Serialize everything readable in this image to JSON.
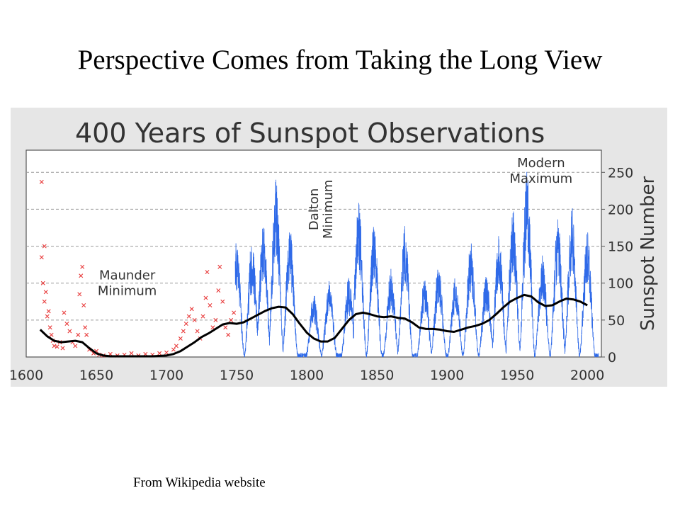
{
  "slide": {
    "title": "Perspective Comes from Taking the Long View",
    "source_note": "From Wikipedia website"
  },
  "chart_data": {
    "type": "line",
    "title": "400 Years of Sunspot Observations",
    "xlabel": "",
    "ylabel": "Sunspot Number",
    "xlim": [
      1600,
      2010
    ],
    "ylim": [
      0,
      280
    ],
    "x_ticks": [
      1600,
      1650,
      1700,
      1750,
      1800,
      1850,
      1900,
      1950,
      2000
    ],
    "y_ticks": [
      0,
      50,
      100,
      150,
      200,
      250
    ],
    "grid": "horizontal dashed",
    "colors": {
      "background": "#e6e6e6",
      "plot_background": "#ffffff",
      "telescope_observations": "#e83a3a",
      "monthly_series": "#2f6ae8",
      "smoothed_series": "#000000",
      "grid": "#9a9a9a",
      "text": "#333333"
    },
    "annotations": [
      {
        "text": [
          "Maunder",
          "Minimum"
        ],
        "x": 1672,
        "y": 105,
        "orientation": "horizontal"
      },
      {
        "text": [
          "Dalton",
          "Minimum"
        ],
        "x": 1808,
        "y": 200,
        "orientation": "vertical"
      },
      {
        "text": [
          "Modern",
          "Maximum"
        ],
        "x": 1967,
        "y": 257,
        "orientation": "horizontal"
      }
    ],
    "series": [
      {
        "kind": "scatter-x",
        "x_range": [
          1610,
          1750
        ],
        "points": [
          [
            1611,
            237
          ],
          [
            1611,
            135
          ],
          [
            1612,
            100
          ],
          [
            1613,
            150
          ],
          [
            1613,
            75
          ],
          [
            1614,
            88
          ],
          [
            1615,
            55
          ],
          [
            1616,
            62
          ],
          [
            1617,
            40
          ],
          [
            1618,
            30
          ],
          [
            1619,
            22
          ],
          [
            1620,
            15
          ],
          [
            1622,
            14
          ],
          [
            1624,
            20
          ],
          [
            1626,
            12
          ],
          [
            1627,
            60
          ],
          [
            1629,
            45
          ],
          [
            1631,
            35
          ],
          [
            1633,
            20
          ],
          [
            1635,
            15
          ],
          [
            1637,
            30
          ],
          [
            1638,
            85
          ],
          [
            1639,
            110
          ],
          [
            1640,
            122
          ],
          [
            1641,
            70
          ],
          [
            1642,
            40
          ],
          [
            1643,
            30
          ],
          [
            1645,
            10
          ],
          [
            1648,
            5
          ],
          [
            1650,
            8
          ],
          [
            1652,
            3
          ],
          [
            1655,
            2
          ],
          [
            1660,
            4
          ],
          [
            1665,
            2
          ],
          [
            1670,
            3
          ],
          [
            1675,
            5
          ],
          [
            1680,
            2
          ],
          [
            1685,
            4
          ],
          [
            1690,
            3
          ],
          [
            1695,
            5
          ],
          [
            1700,
            6
          ],
          [
            1705,
            10
          ],
          [
            1707,
            15
          ],
          [
            1710,
            25
          ],
          [
            1712,
            35
          ],
          [
            1714,
            45
          ],
          [
            1716,
            55
          ],
          [
            1718,
            65
          ],
          [
            1720,
            50
          ],
          [
            1722,
            35
          ],
          [
            1724,
            25
          ],
          [
            1726,
            55
          ],
          [
            1728,
            80
          ],
          [
            1729,
            115
          ],
          [
            1731,
            70
          ],
          [
            1733,
            40
          ],
          [
            1735,
            50
          ],
          [
            1737,
            90
          ],
          [
            1738,
            122
          ],
          [
            1740,
            75
          ],
          [
            1742,
            40
          ],
          [
            1744,
            30
          ],
          [
            1746,
            50
          ],
          [
            1748,
            60
          ]
        ]
      },
      {
        "kind": "monthly",
        "name": "",
        "x_range": [
          1749,
          2008
        ],
        "cycles": [
          {
            "peak_year": 1750,
            "max": 158
          },
          {
            "peak_year": 1761,
            "max": 155
          },
          {
            "peak_year": 1769,
            "max": 180
          },
          {
            "peak_year": 1778,
            "max": 238
          },
          {
            "peak_year": 1788,
            "max": 175
          },
          {
            "peak_year": 1805,
            "max": 82
          },
          {
            "peak_year": 1816,
            "max": 100
          },
          {
            "peak_year": 1830,
            "max": 105
          },
          {
            "peak_year": 1837,
            "max": 206
          },
          {
            "peak_year": 1848,
            "max": 180
          },
          {
            "peak_year": 1860,
            "max": 116
          },
          {
            "peak_year": 1870,
            "max": 176
          },
          {
            "peak_year": 1884,
            "max": 106
          },
          {
            "peak_year": 1894,
            "max": 122
          },
          {
            "peak_year": 1906,
            "max": 107
          },
          {
            "peak_year": 1917,
            "max": 154
          },
          {
            "peak_year": 1928,
            "max": 108
          },
          {
            "peak_year": 1937,
            "max": 165
          },
          {
            "peak_year": 1947,
            "max": 201
          },
          {
            "peak_year": 1957,
            "max": 253
          },
          {
            "peak_year": 1968,
            "max": 135
          },
          {
            "peak_year": 1979,
            "max": 188
          },
          {
            "peak_year": 1989,
            "max": 200
          },
          {
            "peak_year": 2000,
            "max": 170
          }
        ]
      },
      {
        "kind": "smoothed",
        "name": "",
        "points": [
          [
            1610,
            37
          ],
          [
            1615,
            28
          ],
          [
            1620,
            22
          ],
          [
            1625,
            20
          ],
          [
            1630,
            21
          ],
          [
            1635,
            22
          ],
          [
            1640,
            20
          ],
          [
            1645,
            12
          ],
          [
            1650,
            5
          ],
          [
            1655,
            2
          ],
          [
            1660,
            1
          ],
          [
            1670,
            1
          ],
          [
            1680,
            1
          ],
          [
            1690,
            1
          ],
          [
            1700,
            2
          ],
          [
            1705,
            4
          ],
          [
            1710,
            8
          ],
          [
            1715,
            14
          ],
          [
            1720,
            20
          ],
          [
            1725,
            27
          ],
          [
            1730,
            32
          ],
          [
            1735,
            38
          ],
          [
            1740,
            44
          ],
          [
            1745,
            46
          ],
          [
            1750,
            45
          ],
          [
            1755,
            47
          ],
          [
            1760,
            52
          ],
          [
            1765,
            57
          ],
          [
            1770,
            62
          ],
          [
            1775,
            66
          ],
          [
            1780,
            68
          ],
          [
            1785,
            67
          ],
          [
            1790,
            58
          ],
          [
            1795,
            45
          ],
          [
            1800,
            33
          ],
          [
            1805,
            25
          ],
          [
            1810,
            21
          ],
          [
            1815,
            21
          ],
          [
            1820,
            26
          ],
          [
            1825,
            38
          ],
          [
            1830,
            50
          ],
          [
            1835,
            58
          ],
          [
            1840,
            60
          ],
          [
            1845,
            58
          ],
          [
            1850,
            55
          ],
          [
            1855,
            54
          ],
          [
            1860,
            55
          ],
          [
            1865,
            53
          ],
          [
            1870,
            52
          ],
          [
            1875,
            47
          ],
          [
            1880,
            40
          ],
          [
            1885,
            38
          ],
          [
            1890,
            38
          ],
          [
            1895,
            37
          ],
          [
            1900,
            35
          ],
          [
            1905,
            34
          ],
          [
            1910,
            37
          ],
          [
            1915,
            40
          ],
          [
            1920,
            42
          ],
          [
            1925,
            45
          ],
          [
            1930,
            50
          ],
          [
            1935,
            58
          ],
          [
            1940,
            67
          ],
          [
            1945,
            75
          ],
          [
            1950,
            80
          ],
          [
            1955,
            84
          ],
          [
            1960,
            82
          ],
          [
            1965,
            74
          ],
          [
            1970,
            69
          ],
          [
            1975,
            70
          ],
          [
            1980,
            75
          ],
          [
            1985,
            79
          ],
          [
            1990,
            78
          ],
          [
            1995,
            75
          ],
          [
            2000,
            70
          ]
        ]
      }
    ]
  }
}
